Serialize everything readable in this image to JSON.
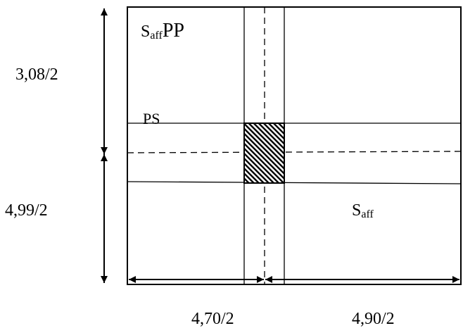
{
  "diagram": {
    "labels": {
      "saff_pp": {
        "main": "S",
        "sub": "aff",
        "suffix": "PP"
      },
      "ps": "PS",
      "saff": {
        "main": "S",
        "sub": "aff"
      }
    },
    "dimensions": {
      "vertical_top": "3,08/2",
      "vertical_bottom": "4,99/2",
      "horizontal_left": "4,70/2",
      "horizontal_right": "4,90/2"
    }
  }
}
